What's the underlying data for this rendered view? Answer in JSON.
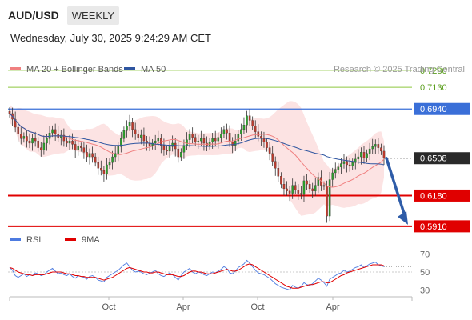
{
  "header": {
    "pair": "AUD/USD",
    "timeframe": "WEEKLY",
    "datetime": "Wednesday, July 30, 2025 9:24:29 AM CET"
  },
  "watermark": "Research © 2025 Trading Central",
  "colors": {
    "upper_resistance": "#8dc63f",
    "resistance": "#3a6fd8",
    "support": "#e00000",
    "price": "#333333",
    "bb": "#f08080",
    "ma50": "#2e55a0",
    "rsi": "#4d7be0",
    "rsi_ma": "#e00000",
    "arrow": "#2e5ca8",
    "candle_up": "#2ba02b",
    "candle_down": "#c0392b"
  },
  "chart_data": [
    {
      "type": "candlestick",
      "title": "AUD/USD",
      "legend": [
        {
          "name": "MA 20 + Bollinger Bands",
          "color": "#f08080"
        },
        {
          "name": "MA 50",
          "color": "#2e55a0"
        }
      ],
      "legend_position": "top-left",
      "x_ticks": [
        "Oct",
        "Apr",
        "Oct",
        "Apr"
      ],
      "ylim": [
        0.586,
        0.7335
      ],
      "levels": [
        {
          "value": 0.728,
          "label": "0.7280",
          "kind": "target"
        },
        {
          "value": 0.713,
          "label": "0.7130",
          "kind": "target"
        },
        {
          "value": 0.694,
          "label": "0.6940",
          "kind": "resistance"
        },
        {
          "value": 0.6508,
          "label": "0.6508",
          "kind": "price"
        },
        {
          "value": 0.618,
          "label": "0.6180",
          "kind": "support"
        },
        {
          "value": 0.591,
          "label": "0.5910",
          "kind": "support"
        }
      ],
      "close_path": [
        0.69,
        0.685,
        0.678,
        0.672,
        0.668,
        0.67,
        0.666,
        0.664,
        0.668,
        0.666,
        0.66,
        0.658,
        0.664,
        0.668,
        0.673,
        0.676,
        0.672,
        0.669,
        0.671,
        0.666,
        0.664,
        0.666,
        0.663,
        0.658,
        0.661,
        0.66,
        0.656,
        0.652,
        0.655,
        0.652,
        0.647,
        0.642,
        0.64,
        0.637,
        0.645,
        0.647,
        0.652,
        0.655,
        0.661,
        0.668,
        0.675,
        0.679,
        0.682,
        0.676,
        0.672,
        0.669,
        0.671,
        0.666,
        0.664,
        0.662,
        0.664,
        0.666,
        0.668,
        0.662,
        0.658,
        0.657,
        0.661,
        0.664,
        0.659,
        0.652,
        0.656,
        0.662,
        0.667,
        0.672,
        0.669,
        0.665,
        0.666,
        0.668,
        0.664,
        0.662,
        0.665,
        0.668,
        0.666,
        0.669,
        0.672,
        0.676,
        0.673,
        0.665,
        0.662,
        0.666,
        0.672,
        0.676,
        0.68,
        0.688,
        0.684,
        0.679,
        0.674,
        0.67,
        0.668,
        0.665,
        0.66,
        0.655,
        0.648,
        0.642,
        0.635,
        0.628,
        0.624,
        0.622,
        0.62,
        0.627,
        0.623,
        0.62,
        0.619,
        0.631,
        0.628,
        0.624,
        0.622,
        0.627,
        0.634,
        0.627,
        0.626,
        0.6,
        0.632,
        0.638,
        0.641,
        0.643,
        0.646,
        0.648,
        0.645,
        0.644,
        0.647,
        0.65,
        0.652,
        0.656,
        0.651,
        0.655,
        0.659,
        0.661,
        0.663,
        0.66,
        0.657,
        0.6508
      ],
      "projection": {
        "from": 0.6508,
        "to": 0.591
      }
    },
    {
      "type": "line",
      "title": "",
      "legend": [
        {
          "name": "RSI",
          "color": "#4d7be0"
        },
        {
          "name": "9MA",
          "color": "#e00000"
        }
      ],
      "yticks": [
        70,
        50,
        30
      ],
      "ylim": [
        25,
        75
      ],
      "rsi_path": [
        55,
        52,
        46,
        44,
        46,
        48,
        45,
        47,
        46,
        49,
        48,
        46,
        47,
        50,
        52,
        54,
        51,
        48,
        49,
        47,
        46,
        48,
        45,
        43,
        46,
        45,
        44,
        42,
        45,
        46,
        44,
        41,
        40,
        39,
        44,
        46,
        48,
        50,
        52,
        55,
        58,
        60,
        56,
        52,
        50,
        51,
        50,
        48,
        47,
        49,
        50,
        52,
        48,
        46,
        45,
        47,
        49,
        47,
        44,
        41,
        46,
        50,
        52,
        54,
        50,
        48,
        50,
        49,
        47,
        46,
        48,
        50,
        49,
        51,
        53,
        56,
        54,
        49,
        48,
        51,
        55,
        57,
        59,
        63,
        60,
        56,
        52,
        49,
        48,
        47,
        45,
        43,
        40,
        37,
        35,
        33,
        32,
        31,
        30,
        35,
        33,
        32,
        34,
        38,
        36,
        35,
        37,
        40,
        43,
        41,
        38,
        34,
        42,
        44,
        46,
        48,
        49,
        52,
        50,
        51,
        53,
        55,
        56,
        58,
        55,
        57,
        59,
        60,
        61,
        58,
        57,
        56
      ],
      "ma9_path": [
        55,
        54,
        52,
        50,
        49,
        48,
        47,
        47,
        46,
        47,
        47,
        47,
        47,
        48,
        49,
        50,
        50,
        50,
        50,
        49,
        48,
        48,
        47,
        46,
        46,
        45,
        45,
        44,
        44,
        44,
        44,
        43,
        42,
        41,
        42,
        43,
        44,
        46,
        48,
        50,
        52,
        54,
        55,
        54,
        53,
        52,
        51,
        50,
        50,
        49,
        49,
        50,
        50,
        49,
        48,
        47,
        47,
        47,
        46,
        45,
        45,
        46,
        48,
        50,
        51,
        51,
        50,
        50,
        49,
        48,
        48,
        48,
        49,
        50,
        51,
        52,
        53,
        52,
        51,
        51,
        52,
        54,
        56,
        58,
        59,
        58,
        56,
        54,
        52,
        50,
        48,
        46,
        44,
        42,
        40,
        38,
        36,
        34,
        33,
        32,
        32,
        32,
        33,
        34,
        35,
        36,
        36,
        37,
        38,
        39,
        39,
        38,
        38,
        40,
        42,
        44,
        46,
        47,
        49,
        50,
        51,
        52,
        53,
        54,
        55,
        56,
        57,
        58,
        58,
        58,
        58,
        57
      ]
    }
  ]
}
